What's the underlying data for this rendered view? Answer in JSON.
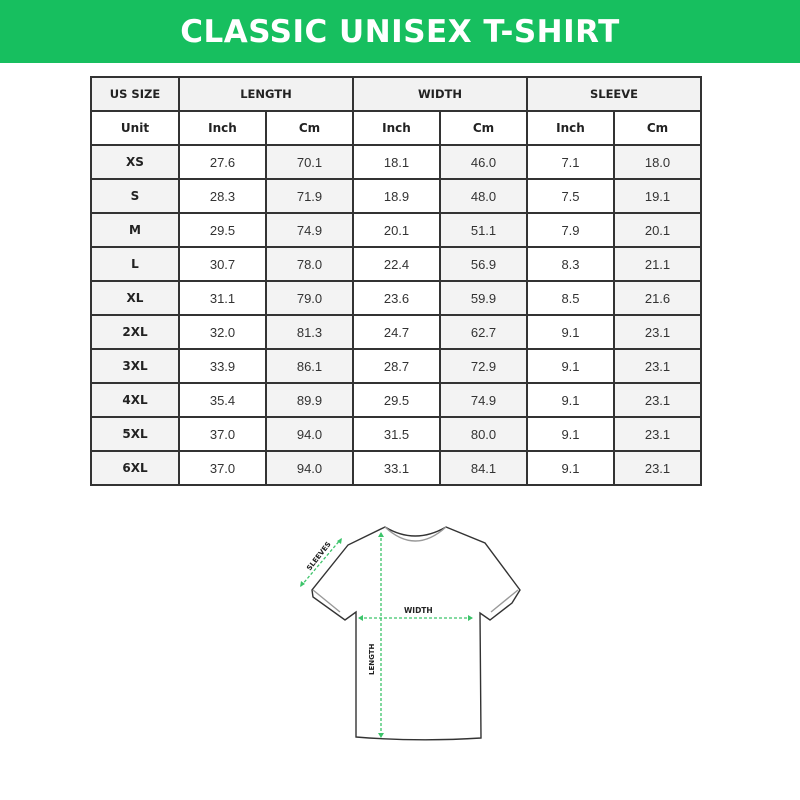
{
  "title": "CLASSIC UNISEX T-SHIRT",
  "colors": {
    "banner": "#17bf5f",
    "arrow": "#3cc46a"
  },
  "table": {
    "group_headers": [
      "US SIZE",
      "LENGTH",
      "WIDTH",
      "SLEEVE"
    ],
    "unit_row": [
      "Unit",
      "Inch",
      "Cm",
      "Inch",
      "Cm",
      "Inch",
      "Cm"
    ],
    "rows": [
      [
        "XS",
        "27.6",
        "70.1",
        "18.1",
        "46.0",
        "7.1",
        "18.0"
      ],
      [
        "S",
        "28.3",
        "71.9",
        "18.9",
        "48.0",
        "7.5",
        "19.1"
      ],
      [
        "M",
        "29.5",
        "74.9",
        "20.1",
        "51.1",
        "7.9",
        "20.1"
      ],
      [
        "L",
        "30.7",
        "78.0",
        "22.4",
        "56.9",
        "8.3",
        "21.1"
      ],
      [
        "XL",
        "31.1",
        "79.0",
        "23.6",
        "59.9",
        "8.5",
        "21.6"
      ],
      [
        "2XL",
        "32.0",
        "81.3",
        "24.7",
        "62.7",
        "9.1",
        "23.1"
      ],
      [
        "3XL",
        "33.9",
        "86.1",
        "28.7",
        "72.9",
        "9.1",
        "23.1"
      ],
      [
        "4XL",
        "35.4",
        "89.9",
        "29.5",
        "74.9",
        "9.1",
        "23.1"
      ],
      [
        "5XL",
        "37.0",
        "94.0",
        "31.5",
        "80.0",
        "9.1",
        "23.1"
      ],
      [
        "6XL",
        "37.0",
        "94.0",
        "33.1",
        "84.1",
        "9.1",
        "23.1"
      ]
    ]
  },
  "diagram": {
    "sleeves": "SLEEVES",
    "width": "WIDTH",
    "length": "LENGTH"
  }
}
